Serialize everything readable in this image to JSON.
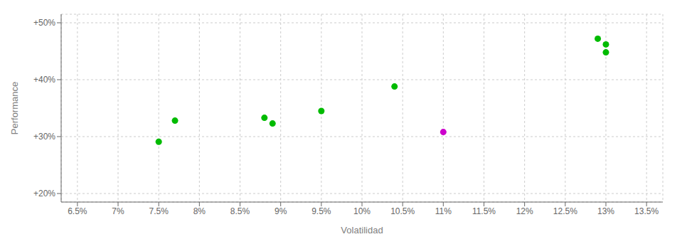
{
  "chart_data": {
    "type": "scatter",
    "x_label": "Volatilidad",
    "y_label": "Performance",
    "xlim": [
      0.063,
      0.137
    ],
    "ylim": [
      0.185,
      0.515
    ],
    "xticks": [
      {
        "value": 0.065,
        "label": "6.5%"
      },
      {
        "value": 0.07,
        "label": "7%"
      },
      {
        "value": 0.075,
        "label": "7.5%"
      },
      {
        "value": 0.08,
        "label": "8%"
      },
      {
        "value": 0.085,
        "label": "8.5%"
      },
      {
        "value": 0.09,
        "label": "9%"
      },
      {
        "value": 0.095,
        "label": "9.5%"
      },
      {
        "value": 0.1,
        "label": "10%"
      },
      {
        "value": 0.105,
        "label": "10.5%"
      },
      {
        "value": 0.11,
        "label": "11%"
      },
      {
        "value": 0.115,
        "label": "11.5%"
      },
      {
        "value": 0.12,
        "label": "12%"
      },
      {
        "value": 0.125,
        "label": "12.5%"
      },
      {
        "value": 0.13,
        "label": "13%"
      },
      {
        "value": 0.135,
        "label": "13.5%"
      }
    ],
    "yticks": [
      {
        "value": 0.2,
        "label": "+20%"
      },
      {
        "value": 0.3,
        "label": "+30%"
      },
      {
        "value": 0.4,
        "label": "+40%"
      },
      {
        "value": 0.5,
        "label": "+50%"
      }
    ],
    "grid": true,
    "series": [
      {
        "color": "#00bb00",
        "x": [
          0.077,
          0.075,
          0.088,
          0.089,
          0.095,
          0.104,
          0.129,
          0.13,
          0.13
        ],
        "y": [
          0.328,
          0.291,
          0.333,
          0.323,
          0.345,
          0.388,
          0.472,
          0.462,
          0.448
        ]
      },
      {
        "color": "#cc00cc",
        "x": [
          0.11
        ],
        "y": [
          0.308
        ]
      }
    ]
  }
}
